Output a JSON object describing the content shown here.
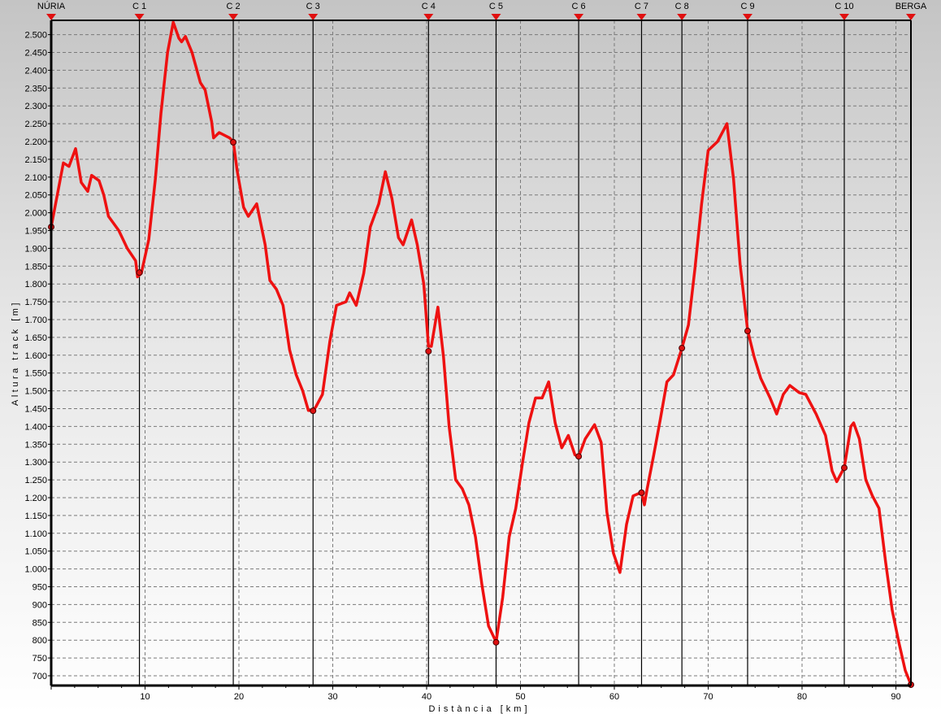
{
  "chart_data": {
    "type": "line",
    "title": "",
    "xlabel": "Distància [km]",
    "ylabel": "Altura track [m]",
    "xlim": [
      0,
      92
    ],
    "ylim": [
      673,
      2540
    ],
    "grid": true,
    "x_ticks": [
      10,
      20,
      30,
      40,
      50,
      60,
      70,
      80,
      90
    ],
    "x_tick_labels": [
      "10",
      "20",
      "30",
      "40",
      "50",
      "60",
      "70",
      "80",
      "90"
    ],
    "y_ticks": [
      700,
      750,
      800,
      850,
      900,
      950,
      1000,
      1050,
      1100,
      1150,
      1200,
      1250,
      1300,
      1350,
      1400,
      1450,
      1500,
      1550,
      1600,
      1650,
      1700,
      1750,
      1800,
      1850,
      1900,
      1950,
      2000,
      2050,
      2100,
      2150,
      2200,
      2250,
      2300,
      2350,
      2400,
      2450,
      2500
    ],
    "y_tick_labels": [
      "700",
      "750",
      "800",
      "850",
      "900",
      "950",
      "1.000",
      "1.050",
      "1.100",
      "1.150",
      "1.200",
      "1.250",
      "1.300",
      "1.350",
      "1.400",
      "1.450",
      "1.500",
      "1.550",
      "1.600",
      "1.650",
      "1.700",
      "1.750",
      "1.800",
      "1.850",
      "1.900",
      "1.950",
      "2.000",
      "2.050",
      "2.100",
      "2.150",
      "2.200",
      "2.250",
      "2.300",
      "2.350",
      "2.400",
      "2.450",
      "2.500"
    ],
    "line_color": "#ee1111",
    "marker_color": "#dd1111",
    "waypoints": [
      {
        "label": "NÚRIA",
        "km": 0.0,
        "m": 1960
      },
      {
        "label": "C 1",
        "km": 9.4,
        "m": 1832
      },
      {
        "label": "C 2",
        "km": 19.4,
        "m": 2198
      },
      {
        "label": "C 3",
        "km": 27.9,
        "m": 1444
      },
      {
        "label": "C 4",
        "km": 40.2,
        "m": 1611
      },
      {
        "label": "C 5",
        "km": 47.4,
        "m": 794
      },
      {
        "label": "C 6",
        "km": 56.2,
        "m": 1316
      },
      {
        "label": "C 7",
        "km": 62.9,
        "m": 1214
      },
      {
        "label": "C 8",
        "km": 67.2,
        "m": 1620
      },
      {
        "label": "C 9",
        "km": 74.2,
        "m": 1668
      },
      {
        "label": "C 10",
        "km": 84.5,
        "m": 1284
      },
      {
        "label": "BERGA",
        "km": 91.6,
        "m": 675
      }
    ],
    "series": [
      {
        "x": [
          0.0,
          1.3,
          1.9,
          2.6,
          3.2,
          3.9,
          4.3,
          5.1,
          5.6,
          6.1,
          7.2,
          8.1,
          9.0,
          9.2,
          9.6,
          10.4,
          11.1,
          11.7,
          12.4,
          13.0,
          13.6,
          13.9,
          14.3,
          15.0,
          15.9,
          16.4,
          17.1,
          17.3,
          17.9,
          19.0,
          19.4,
          19.8,
          20.5,
          21.0,
          21.9,
          22.8,
          23.3,
          24.0,
          24.7,
          25.4,
          26.1,
          26.8,
          27.4,
          27.9,
          28.2,
          28.9,
          29.7,
          30.4,
          31.4,
          31.8,
          32.5,
          33.3,
          34.0,
          34.9,
          35.6,
          36.3,
          37.0,
          37.5,
          38.4,
          39.0,
          39.7,
          40.2,
          40.5,
          41.2,
          41.8,
          42.4,
          43.1,
          43.8,
          44.5,
          45.2,
          45.9,
          46.6,
          47.4,
          48.1,
          48.8,
          49.5,
          50.2,
          50.9,
          51.6,
          52.3,
          53.0,
          53.7,
          54.4,
          55.1,
          55.8,
          56.2,
          56.9,
          57.9,
          58.6,
          59.2,
          59.9,
          60.6,
          61.3,
          62.0,
          62.9,
          63.2,
          63.5,
          64.2,
          64.9,
          65.6,
          66.3,
          67.2,
          67.9,
          68.6,
          69.3,
          70.0,
          71.0,
          72.0,
          72.7,
          73.4,
          74.2,
          74.9,
          75.6,
          76.6,
          77.3,
          78.0,
          78.7,
          79.7,
          80.4,
          81.5,
          82.5,
          83.2,
          83.7,
          84.5,
          85.2,
          85.5,
          86.1,
          86.8,
          87.5,
          88.2,
          88.9,
          89.6,
          90.3,
          91.0,
          91.6
        ],
        "y": [
          1960,
          2140,
          2130,
          2180,
          2085,
          2060,
          2105,
          2090,
          2050,
          1990,
          1950,
          1900,
          1865,
          1820,
          1830,
          1925,
          2095,
          2280,
          2450,
          2535,
          2490,
          2480,
          2495,
          2450,
          2365,
          2345,
          2255,
          2210,
          2225,
          2210,
          2200,
          2120,
          2015,
          1990,
          2025,
          1910,
          1810,
          1785,
          1740,
          1615,
          1545,
          1500,
          1445,
          1445,
          1455,
          1490,
          1640,
          1740,
          1750,
          1775,
          1740,
          1830,
          1960,
          2025,
          2115,
          2040,
          1930,
          1910,
          1980,
          1910,
          1800,
          1625,
          1625,
          1735,
          1595,
          1400,
          1250,
          1225,
          1180,
          1090,
          955,
          840,
          795,
          920,
          1090,
          1170,
          1295,
          1410,
          1480,
          1480,
          1525,
          1410,
          1340,
          1375,
          1320,
          1315,
          1365,
          1405,
          1355,
          1160,
          1045,
          990,
          1125,
          1205,
          1215,
          1180,
          1225,
          1320,
          1420,
          1525,
          1545,
          1620,
          1685,
          1845,
          2025,
          2175,
          2200,
          2250,
          2095,
          1855,
          1670,
          1595,
          1535,
          1480,
          1435,
          1490,
          1515,
          1495,
          1490,
          1435,
          1375,
          1275,
          1245,
          1285,
          1400,
          1410,
          1365,
          1250,
          1205,
          1170,
          1020,
          885,
          795,
          715,
          675
        ]
      }
    ]
  }
}
